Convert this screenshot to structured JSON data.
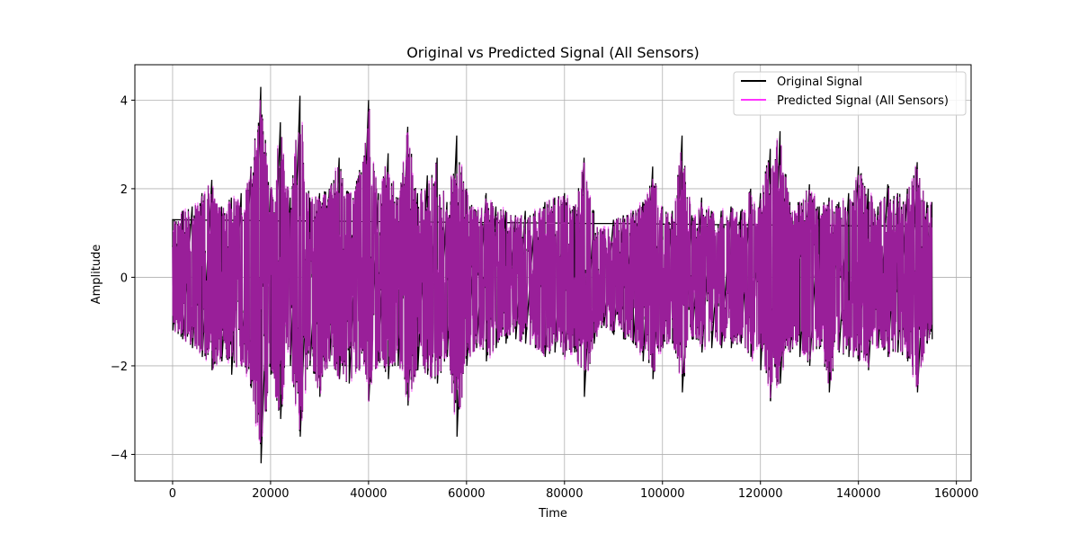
{
  "chart_data": {
    "type": "line",
    "title": "Original vs Predicted Signal (All Sensors)",
    "xlabel": "Time",
    "ylabel": "Amplitude",
    "xlim": [
      -7700,
      163000
    ],
    "ylim": [
      -4.6,
      4.8
    ],
    "grid": true,
    "legend_position": "top-right",
    "x_ticks": [
      0,
      20000,
      40000,
      60000,
      80000,
      100000,
      120000,
      140000,
      160000
    ],
    "y_ticks": [
      -4,
      -2,
      0,
      2,
      4
    ],
    "x_tick_labels": [
      "0",
      "20000",
      "40000",
      "60000",
      "80000",
      "100000",
      "120000",
      "140000",
      "160000"
    ],
    "y_tick_labels": [
      "−4",
      "−2",
      "0",
      "2",
      "4"
    ],
    "x_range": [
      0,
      155000
    ],
    "series": [
      {
        "name": "Original Signal",
        "color": "#000000",
        "envelope": {
          "x": [
            0,
            2000,
            4000,
            6000,
            8000,
            10000,
            12000,
            14000,
            16000,
            18000,
            20000,
            22000,
            24000,
            26000,
            28000,
            30000,
            32000,
            34000,
            36000,
            38000,
            40000,
            42000,
            44000,
            46000,
            48000,
            50000,
            52000,
            54000,
            56000,
            58000,
            60000,
            62000,
            64000,
            66000,
            68000,
            70000,
            72000,
            74000,
            76000,
            78000,
            80000,
            82000,
            84000,
            86000,
            88000,
            90000,
            92000,
            94000,
            96000,
            98000,
            100000,
            102000,
            104000,
            106000,
            108000,
            110000,
            112000,
            114000,
            116000,
            118000,
            120000,
            122000,
            124000,
            126000,
            128000,
            130000,
            132000,
            134000,
            136000,
            138000,
            140000,
            142000,
            144000,
            146000,
            148000,
            150000,
            152000,
            154000,
            155000
          ],
          "upper": [
            1.3,
            1.5,
            1.6,
            1.9,
            2.2,
            1.6,
            1.8,
            1.9,
            2.5,
            4.3,
            2.0,
            3.5,
            1.8,
            4.1,
            1.8,
            1.9,
            2.0,
            2.7,
            1.9,
            2.3,
            4.0,
            1.9,
            2.8,
            1.8,
            3.4,
            1.9,
            2.3,
            2.7,
            1.7,
            3.2,
            2.0,
            1.5,
            1.9,
            1.6,
            1.5,
            1.4,
            1.5,
            1.5,
            1.7,
            1.8,
            1.9,
            1.6,
            2.7,
            1.5,
            1.1,
            1.3,
            1.4,
            1.5,
            1.7,
            2.5,
            1.6,
            1.5,
            3.2,
            1.4,
            1.8,
            1.5,
            1.5,
            1.6,
            1.5,
            2.0,
            1.9,
            2.9,
            3.3,
            1.7,
            1.7,
            2.1,
            1.6,
            1.8,
            1.7,
            1.9,
            2.5,
            2.0,
            1.6,
            2.1,
            1.9,
            2.0,
            2.6,
            1.7,
            1.7
          ],
          "lower": [
            -1.2,
            -1.4,
            -1.6,
            -1.8,
            -2.1,
            -1.9,
            -2.2,
            -2.0,
            -2.5,
            -4.2,
            -2.2,
            -3.2,
            -2.0,
            -3.6,
            -2.0,
            -2.7,
            -1.9,
            -2.3,
            -2.4,
            -2.1,
            -2.8,
            -1.9,
            -2.3,
            -2.0,
            -2.9,
            -2.1,
            -2.2,
            -2.4,
            -1.8,
            -3.6,
            -2.0,
            -1.6,
            -1.9,
            -1.6,
            -1.5,
            -1.4,
            -1.5,
            -1.6,
            -1.8,
            -1.7,
            -1.8,
            -1.7,
            -2.7,
            -1.5,
            -1.1,
            -1.3,
            -1.4,
            -1.5,
            -1.9,
            -2.3,
            -1.6,
            -1.5,
            -2.6,
            -1.4,
            -1.7,
            -1.6,
            -1.6,
            -1.6,
            -1.5,
            -1.8,
            -2.1,
            -2.8,
            -2.4,
            -1.7,
            -1.8,
            -2.0,
            -1.6,
            -2.6,
            -1.7,
            -1.8,
            -1.9,
            -2.1,
            -1.6,
            -1.8,
            -1.7,
            -1.9,
            -2.6,
            -1.5,
            -1.4
          ]
        }
      },
      {
        "name": "Predicted Signal (All Sensors)",
        "color": "#ff33ff"
      }
    ]
  }
}
